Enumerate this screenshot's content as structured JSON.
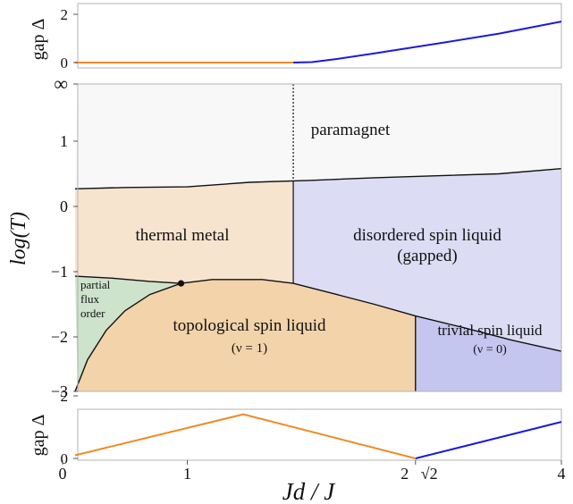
{
  "colors": {
    "paramagnet": "#f8f8f9",
    "thermal_metal": "#f7e4cf",
    "disordered_spin_liquid": "#dcdcf4",
    "partial_flux_order": "#cde3cc",
    "topological_spin_liquid": "#f3d3aa",
    "trivial_spin_liquid": "#c5c6ef",
    "gap_zero_line": "#f08a24",
    "gap_topological_line": "#f08a24",
    "gap_trivial_line": "#1a1adf",
    "boundary": "#111111"
  },
  "chart_data": [
    {
      "type": "line",
      "panel": "top",
      "ylabel": "gap Δ",
      "x_range": [
        0,
        4
      ],
      "ylim": [
        0,
        2
      ],
      "yticks": [
        "0",
        "2"
      ],
      "series": [
        {
          "color": "orange",
          "x": [
            0.1,
            1.85
          ],
          "y": [
            0,
            0
          ]
        },
        {
          "color": "blue",
          "x": [
            1.85,
            2.0,
            2.2,
            2.5,
            3.0,
            3.5,
            4.0
          ],
          "y": [
            0,
            0.02,
            0.15,
            0.38,
            0.78,
            1.2,
            1.7
          ]
        }
      ]
    },
    {
      "type": "area",
      "panel": "phase-diagram",
      "ylabel": "log(T)",
      "x_range": [
        0,
        4
      ],
      "ylim": [
        -3,
        "∞"
      ],
      "yticks": [
        "−3",
        "−2",
        "−1",
        "0",
        "1",
        "∞"
      ],
      "regions": [
        {
          "key": "paramagnet",
          "label": [
            "paramagnet"
          ]
        },
        {
          "key": "thermal_metal",
          "label": [
            "thermal metal"
          ]
        },
        {
          "key": "disordered_spin_liquid",
          "label": [
            "disordered spin liquid",
            "(gapped)"
          ]
        },
        {
          "key": "partial_flux_order",
          "label": [
            "partial",
            "flux",
            "order"
          ]
        },
        {
          "key": "topological_spin_liquid",
          "label": [
            "topological spin liquid",
            "(ν = 1)"
          ]
        },
        {
          "key": "trivial_spin_liquid",
          "label": [
            "trivial spin liquid",
            "(ν = 0)"
          ]
        }
      ],
      "boundaries": {
        "upper_crossover": {
          "x": [
            0.1,
            0.5,
            1.0,
            1.5,
            2.0,
            2.5,
            3.0,
            3.5,
            4.0
          ],
          "y": [
            0.27,
            0.29,
            0.3,
            0.37,
            0.4,
            0.44,
            0.47,
            0.5,
            0.58
          ]
        },
        "vertical_line_x": 1.85,
        "metal_floor": {
          "x": [
            0.1,
            0.4,
            0.7,
            0.95
          ],
          "y": [
            -1.07,
            -1.1,
            -1.15,
            -1.18
          ]
        },
        "dome": {
          "x": [
            0.1,
            0.2,
            0.35,
            0.5,
            0.7,
            0.95,
            1.2,
            1.6,
            1.85,
            2.2,
            2.5,
            2.83
          ],
          "y": [
            -2.85,
            -2.35,
            -1.9,
            -1.6,
            -1.35,
            -1.18,
            -1.12,
            -1.12,
            -1.18,
            -1.35,
            -1.5,
            -1.68
          ]
        },
        "trivial_top": {
          "x": [
            2.83,
            3.2,
            3.6,
            4.0
          ],
          "y": [
            -1.68,
            -1.85,
            -2.05,
            -2.22
          ]
        },
        "vertical_line_x_trivial": 2.83
      },
      "tricritical_point": {
        "x": 0.95,
        "y": -1.18
      }
    },
    {
      "type": "line",
      "panel": "bottom",
      "ylabel": "gap Δ",
      "xlabel": "Jd / J",
      "x_range": [
        0,
        4
      ],
      "ylim": [
        0,
        2
      ],
      "yticks": [
        "0",
        "2"
      ],
      "xticks": [
        "0",
        "1",
        "2",
        "√2",
        "4"
      ],
      "series": [
        {
          "color": "orange",
          "x": [
            0.1,
            1.45,
            2.83
          ],
          "y": [
            0.1,
            1.41,
            0
          ]
        },
        {
          "color": "blue",
          "x": [
            2.83,
            4.0
          ],
          "y": [
            0,
            1.17
          ]
        }
      ]
    }
  ]
}
